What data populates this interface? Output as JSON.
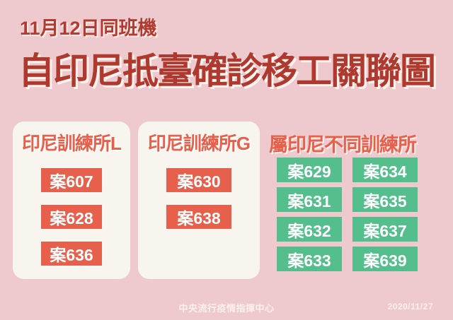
{
  "header": {
    "subtitle": "11月12日同班機",
    "title": "自印尼抵臺確診移工關聯圖"
  },
  "groups": [
    {
      "label": "印尼訓練所L",
      "badge_style": "red",
      "container": "card",
      "cases": [
        "案607",
        "案628",
        "案636"
      ]
    },
    {
      "label": "印尼訓練所G",
      "badge_style": "red",
      "container": "card",
      "cases": [
        "案630",
        "案638"
      ]
    },
    {
      "label": "屬印尼不同訓練所",
      "badge_style": "green",
      "container": "plain-grid",
      "grid_order": "row-major, 2 columns",
      "cases": [
        "案629",
        "案634",
        "案631",
        "案635",
        "案632",
        "案637",
        "案633",
        "案639"
      ]
    }
  ],
  "footer": {
    "org": "中央流行疫情指揮中心",
    "date": "2020/11/27"
  },
  "colors": {
    "background": "#EECACE",
    "card_background": "#F8F4EE",
    "dark_red_title": "#AF392E",
    "accent_red": "#E7604C",
    "badge_green": "#55BE8D",
    "badge_text": "#FFFFFF",
    "footer_text": "#FAF0EC"
  }
}
